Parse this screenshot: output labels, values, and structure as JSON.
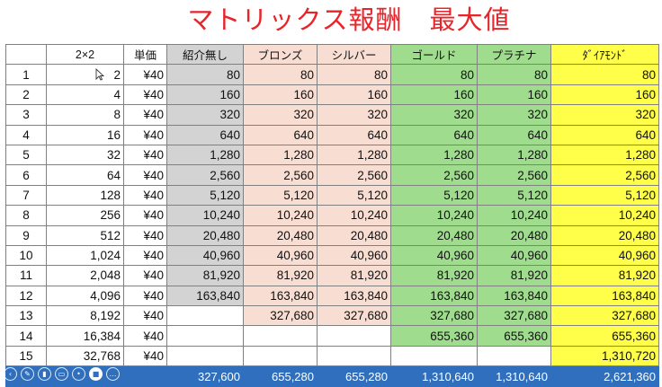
{
  "title": "マトリックス報酬　最大値",
  "headers": [
    "",
    "2×2",
    "単価",
    "紹介無し",
    "ブロンズ",
    "シルバー",
    "ゴールド",
    "プラチナ",
    "ﾀﾞｲｱﾓﾝﾄﾞ"
  ],
  "rows": [
    [
      "1",
      "2",
      "¥40",
      "80",
      "80",
      "80",
      "80",
      "80",
      "80"
    ],
    [
      "2",
      "4",
      "¥40",
      "160",
      "160",
      "160",
      "160",
      "160",
      "160"
    ],
    [
      "3",
      "8",
      "¥40",
      "320",
      "320",
      "320",
      "320",
      "320",
      "320"
    ],
    [
      "4",
      "16",
      "¥40",
      "640",
      "640",
      "640",
      "640",
      "640",
      "640"
    ],
    [
      "5",
      "32",
      "¥40",
      "1,280",
      "1,280",
      "1,280",
      "1,280",
      "1,280",
      "1,280"
    ],
    [
      "6",
      "64",
      "¥40",
      "2,560",
      "2,560",
      "2,560",
      "2,560",
      "2,560",
      "2,560"
    ],
    [
      "7",
      "128",
      "¥40",
      "5,120",
      "5,120",
      "5,120",
      "5,120",
      "5,120",
      "5,120"
    ],
    [
      "8",
      "256",
      "¥40",
      "10,240",
      "10,240",
      "10,240",
      "10,240",
      "10,240",
      "10,240"
    ],
    [
      "9",
      "512",
      "¥40",
      "20,480",
      "20,480",
      "20,480",
      "20,480",
      "20,480",
      "20,480"
    ],
    [
      "10",
      "1,024",
      "¥40",
      "40,960",
      "40,960",
      "40,960",
      "40,960",
      "40,960",
      "40,960"
    ],
    [
      "11",
      "2,048",
      "¥40",
      "81,920",
      "81,920",
      "81,920",
      "81,920",
      "81,920",
      "81,920"
    ],
    [
      "12",
      "4,096",
      "¥40",
      "163,840",
      "163,840",
      "163,840",
      "163,840",
      "163,840",
      "163,840"
    ],
    [
      "13",
      "8,192",
      "¥40",
      "",
      "327,680",
      "327,680",
      "327,680",
      "327,680",
      "327,680"
    ],
    [
      "14",
      "16,384",
      "¥40",
      "",
      "",
      "",
      "655,360",
      "655,360",
      "655,360"
    ],
    [
      "15",
      "32,768",
      "¥40",
      "",
      "",
      "",
      "",
      "",
      "1,310,720"
    ]
  ],
  "totals": [
    "",
    "",
    "",
    "327,600",
    "655,280",
    "655,280",
    "1,310,640",
    "1,310,640",
    "2,621,360"
  ],
  "colors": {
    "title": "#e8242a",
    "no_referral": "#d3d3d3",
    "bronze": "#f7ddd2",
    "silver": "#f7ddd2",
    "gold": "#9fdc8d",
    "platinum": "#9fdc8d",
    "diamond": "#ffff4a",
    "total_bar": "#2f6fbd"
  },
  "taskbar_icons": [
    "back-icon",
    "pen-icon",
    "highlighter-icon",
    "eraser-icon",
    "laser-pointer-icon",
    "camera-icon",
    "more-icon"
  ]
}
